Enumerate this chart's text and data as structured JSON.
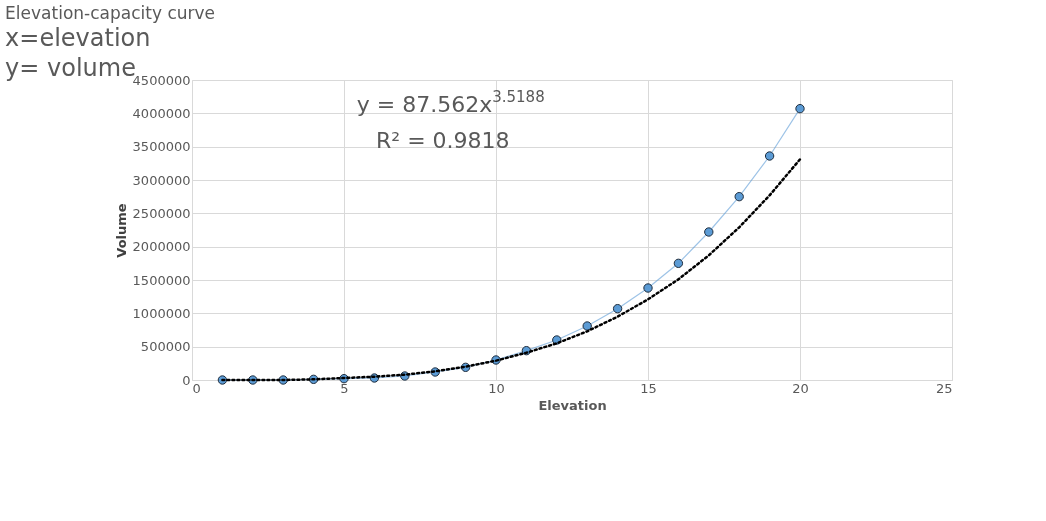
{
  "chart_data": {
    "type": "line",
    "title": "Elevation-capacity curve",
    "xlabel": "Elevation",
    "ylabel": "Volume",
    "annotations": [
      "x=elevation",
      "y= volume",
      "y = 87.562x$^{3.5188}$",
      "R² = 0.9818"
    ],
    "x": [
      1,
      2,
      3,
      4,
      5,
      6,
      7,
      8,
      9,
      10,
      11,
      12,
      13,
      14,
      15,
      16,
      17,
      18,
      19,
      20
    ],
    "series": [
      {
        "color": "#5b9bd5",
        "marker": "circle",
        "line_style": "solid",
        "values": [
          0,
          0,
          0,
          10000,
          20000,
          30000,
          60000,
          120000,
          190000,
          300000,
          440000,
          600000,
          810000,
          1070000,
          1380000,
          1750000,
          2220000,
          2750000,
          3360000,
          4070000
        ]
      },
      {
        "color": "#000000",
        "marker": "none",
        "line_style": "dotted",
        "values": [
          0,
          0,
          0,
          10000,
          30000,
          50000,
          80000,
          130000,
          200000,
          290000,
          410000,
          550000,
          730000,
          950000,
          1210000,
          1510000,
          1870000,
          2290000,
          2770000,
          3310000
        ]
      }
    ],
    "xlim": [
      0,
      25
    ],
    "xticks": [
      0,
      5,
      10,
      15,
      20,
      25
    ],
    "ylim": [
      0,
      4500000
    ],
    "yticks": [
      0,
      500000,
      1000000,
      1500000,
      2000000,
      2500000,
      3000000,
      3500000,
      4000000,
      4500000
    ],
    "grid": true
  }
}
